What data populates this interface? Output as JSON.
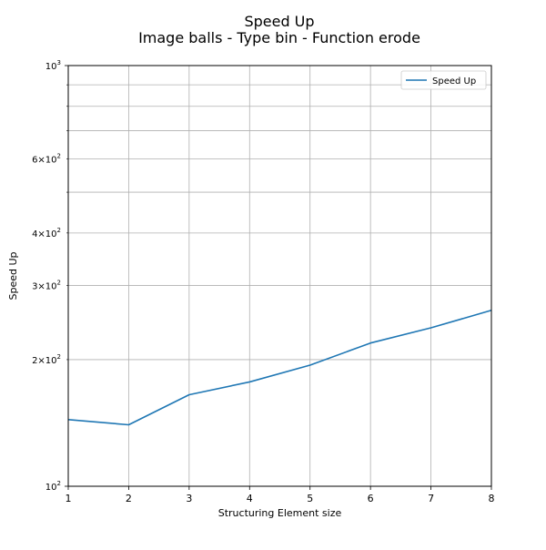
{
  "chart_data": {
    "type": "line",
    "title": "Speed Up",
    "subtitle": "Image balls - Type bin - Function erode",
    "xlabel": "Structuring Element size",
    "ylabel": "Speed Up",
    "xlim": [
      1,
      8
    ],
    "ylim": [
      100,
      1000
    ],
    "yscale": "log",
    "grid": true,
    "legend_position": "top-right",
    "x": [
      1,
      2,
      3,
      4,
      5,
      6,
      7,
      8
    ],
    "x_tick_labels": [
      "1",
      "2",
      "3",
      "4",
      "5",
      "6",
      "7",
      "8"
    ],
    "y_major_ticks": [
      {
        "value": 100,
        "base": "10",
        "exp": "2"
      },
      {
        "value": 1000,
        "base": "10",
        "exp": "3"
      }
    ],
    "y_minor_ticks": [
      {
        "value": 200,
        "coef": "2",
        "base": "10",
        "exp": "2"
      },
      {
        "value": 300,
        "coef": "3",
        "base": "10",
        "exp": "2"
      },
      {
        "value": 400,
        "coef": "4",
        "base": "10",
        "exp": "2"
      },
      {
        "value": 500,
        "coef": "",
        "base": "",
        "exp": ""
      },
      {
        "value": 600,
        "coef": "6",
        "base": "10",
        "exp": "2"
      },
      {
        "value": 700,
        "coef": "",
        "base": "",
        "exp": ""
      },
      {
        "value": 800,
        "coef": "",
        "base": "",
        "exp": ""
      },
      {
        "value": 900,
        "coef": "",
        "base": "",
        "exp": ""
      }
    ],
    "series": [
      {
        "name": "Speed Up",
        "color": "#1f77b4",
        "values": [
          144,
          140,
          165,
          177,
          194,
          219,
          238,
          262
        ]
      }
    ]
  }
}
